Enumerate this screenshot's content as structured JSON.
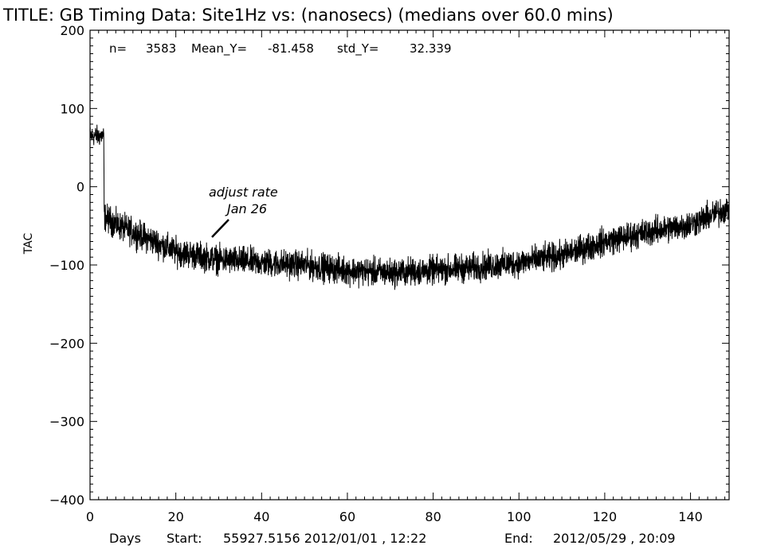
{
  "chart_data": {
    "type": "line",
    "title": "TITLE: GB Timing Data: Site1Hz vs: (nanosecs) (medians over 60.0 mins)",
    "stats": {
      "n_label": "n=",
      "n": "3583",
      "mean_label": "Mean_Y=",
      "mean": "-81.458",
      "std_label": "std_Y=",
      "std": "32.339"
    },
    "ylabel": "TAC",
    "xlabel": "Days",
    "xlim": [
      0,
      149
    ],
    "ylim": [
      -400,
      200
    ],
    "xticks": [
      "0",
      "20",
      "40",
      "60",
      "80",
      "100",
      "120",
      "140"
    ],
    "yticks": [
      "200",
      "100",
      "0",
      "−100",
      "−200",
      "−300",
      "−400"
    ],
    "footer": {
      "days": "Days",
      "start_label": "Start:",
      "start_value": "55927.5156 2012/01/01 , 12:22",
      "end_label": "End:",
      "end_value": "2012/05/29 , 20:09"
    },
    "annotation": {
      "line1": "adjust rate",
      "line2": "Jan 26",
      "x": 25,
      "y": -70
    },
    "series": [
      {
        "trend_points": [
          [
            0.0,
            65
          ],
          [
            3.2,
            65
          ],
          [
            3.3,
            -38
          ],
          [
            6,
            -48
          ],
          [
            10,
            -58
          ],
          [
            15,
            -70
          ],
          [
            20,
            -83
          ],
          [
            25,
            -88
          ],
          [
            30,
            -93
          ],
          [
            40,
            -97
          ],
          [
            50,
            -100
          ],
          [
            60,
            -107
          ],
          [
            70,
            -110
          ],
          [
            80,
            -107
          ],
          [
            90,
            -103
          ],
          [
            100,
            -97
          ],
          [
            110,
            -88
          ],
          [
            120,
            -70
          ],
          [
            130,
            -58
          ],
          [
            140,
            -48
          ],
          [
            149,
            -27
          ]
        ],
        "noise_amplitude": 11,
        "points_count": 3583
      }
    ]
  }
}
